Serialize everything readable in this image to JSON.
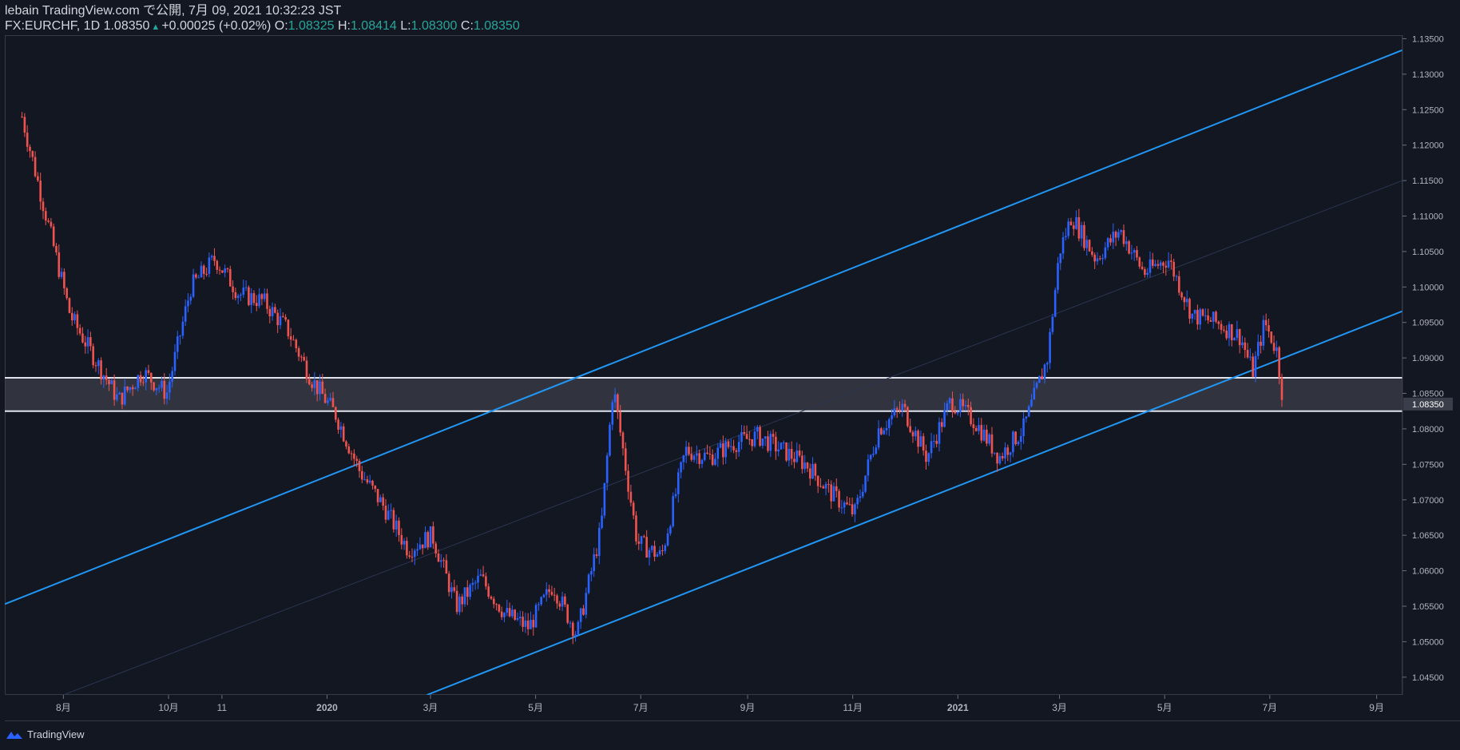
{
  "header": {
    "line1": "lebain TradingView.com で公開, 7月 09, 2021 10:32:23 JST",
    "symbol": "FX:EURCHF, 1D",
    "last": "1.08350",
    "change": "+0.00025 (+0.02%)",
    "o_label": "O:",
    "o_val": "1.08325",
    "h_label": "H:",
    "h_val": "1.08414",
    "l_label": "L:",
    "l_val": "1.08300",
    "c_label": "C:",
    "c_val": "1.08350"
  },
  "footer": {
    "brand": "TradingView"
  },
  "colors": {
    "background": "#131722",
    "up": "#2962ff",
    "down": "#ef5350",
    "channel": "#2196f3",
    "zone": "#e0e3eb",
    "grid": "#363a45"
  },
  "chart_data": {
    "type": "candlestick",
    "symbol": "FX:EURCHF",
    "interval": "1D",
    "ylim": [
      1.0425,
      1.1355
    ],
    "y_ticks": [
      "1.13500",
      "1.13000",
      "1.12500",
      "1.12000",
      "1.11500",
      "1.11000",
      "1.10500",
      "1.10000",
      "1.09500",
      "1.09000",
      "1.08500",
      "1.08350",
      "1.08000",
      "1.07500",
      "1.07000",
      "1.06500",
      "1.06000",
      "1.05500",
      "1.05000",
      "1.04500"
    ],
    "x_ticks": [
      "8月",
      "10月",
      "11",
      "2020",
      "3月",
      "5月",
      "7月",
      "9月",
      "11月",
      "2021",
      "3月",
      "5月",
      "7月",
      "9月"
    ],
    "last_price": 1.0835,
    "series_approx": [
      {
        "date": "2019-07-08",
        "close": 1.124
      },
      {
        "date": "2019-07-22",
        "close": 1.11
      },
      {
        "date": "2019-08-05",
        "close": 1.096
      },
      {
        "date": "2019-08-19",
        "close": 1.09
      },
      {
        "date": "2019-09-02",
        "close": 1.084
      },
      {
        "date": "2019-09-16",
        "close": 1.088
      },
      {
        "date": "2019-09-30",
        "close": 1.085
      },
      {
        "date": "2019-10-14",
        "close": 1.1
      },
      {
        "date": "2019-10-28",
        "close": 1.104
      },
      {
        "date": "2019-11-11",
        "close": 1.099
      },
      {
        "date": "2019-11-25",
        "close": 1.098
      },
      {
        "date": "2019-12-09",
        "close": 1.094
      },
      {
        "date": "2019-12-23",
        "close": 1.087
      },
      {
        "date": "2020-01-06",
        "close": 1.082
      },
      {
        "date": "2020-01-20",
        "close": 1.074
      },
      {
        "date": "2020-02-03",
        "close": 1.069
      },
      {
        "date": "2020-02-17",
        "close": 1.063
      },
      {
        "date": "2020-03-02",
        "close": 1.065
      },
      {
        "date": "2020-03-16",
        "close": 1.055
      },
      {
        "date": "2020-03-30",
        "close": 1.059
      },
      {
        "date": "2020-04-13",
        "close": 1.054
      },
      {
        "date": "2020-04-27",
        "close": 1.052
      },
      {
        "date": "2020-05-11",
        "close": 1.058
      },
      {
        "date": "2020-05-25",
        "close": 1.051
      },
      {
        "date": "2020-06-08",
        "close": 1.066
      },
      {
        "date": "2020-06-15",
        "close": 1.086
      },
      {
        "date": "2020-06-29",
        "close": 1.064
      },
      {
        "date": "2020-07-13",
        "close": 1.062
      },
      {
        "date": "2020-07-27",
        "close": 1.077
      },
      {
        "date": "2020-08-10",
        "close": 1.076
      },
      {
        "date": "2020-08-24",
        "close": 1.078
      },
      {
        "date": "2020-09-07",
        "close": 1.079
      },
      {
        "date": "2020-09-21",
        "close": 1.077
      },
      {
        "date": "2020-10-05",
        "close": 1.075
      },
      {
        "date": "2020-10-19",
        "close": 1.071
      },
      {
        "date": "2020-11-02",
        "close": 1.068
      },
      {
        "date": "2020-11-16",
        "close": 1.08
      },
      {
        "date": "2020-11-30",
        "close": 1.083
      },
      {
        "date": "2020-12-14",
        "close": 1.076
      },
      {
        "date": "2020-12-28",
        "close": 1.084
      },
      {
        "date": "2021-01-11",
        "close": 1.081
      },
      {
        "date": "2021-01-25",
        "close": 1.076
      },
      {
        "date": "2021-02-08",
        "close": 1.08
      },
      {
        "date": "2021-02-22",
        "close": 1.09
      },
      {
        "date": "2021-03-01",
        "close": 1.105
      },
      {
        "date": "2021-03-08",
        "close": 1.11
      },
      {
        "date": "2021-03-22",
        "close": 1.104
      },
      {
        "date": "2021-04-05",
        "close": 1.108
      },
      {
        "date": "2021-04-19",
        "close": 1.102
      },
      {
        "date": "2021-05-03",
        "close": 1.104
      },
      {
        "date": "2021-05-17",
        "close": 1.096
      },
      {
        "date": "2021-05-31",
        "close": 1.095
      },
      {
        "date": "2021-06-14",
        "close": 1.093
      },
      {
        "date": "2021-06-21",
        "close": 1.088
      },
      {
        "date": "2021-06-28",
        "close": 1.095
      },
      {
        "date": "2021-07-05",
        "close": 1.091
      },
      {
        "date": "2021-07-09",
        "close": 1.0835
      }
    ],
    "horizontal_zone": {
      "upper": 1.0872,
      "lower": 1.0825
    },
    "channel_lines": [
      {
        "name": "upper",
        "from": {
          "date": "2019-06-28",
          "price": 1.0553
        },
        "to": {
          "date": "2021-09-16",
          "price": 1.1334
        }
      },
      {
        "name": "lower",
        "from": {
          "date": "2020-02-28",
          "price": 1.0425
        },
        "to": {
          "date": "2021-09-16",
          "price": 1.0966
        }
      },
      {
        "name": "median",
        "from": {
          "date": "2019-08-01",
          "price": 1.0425
        },
        "to": {
          "date": "2021-09-16",
          "price": 1.115
        }
      }
    ]
  }
}
